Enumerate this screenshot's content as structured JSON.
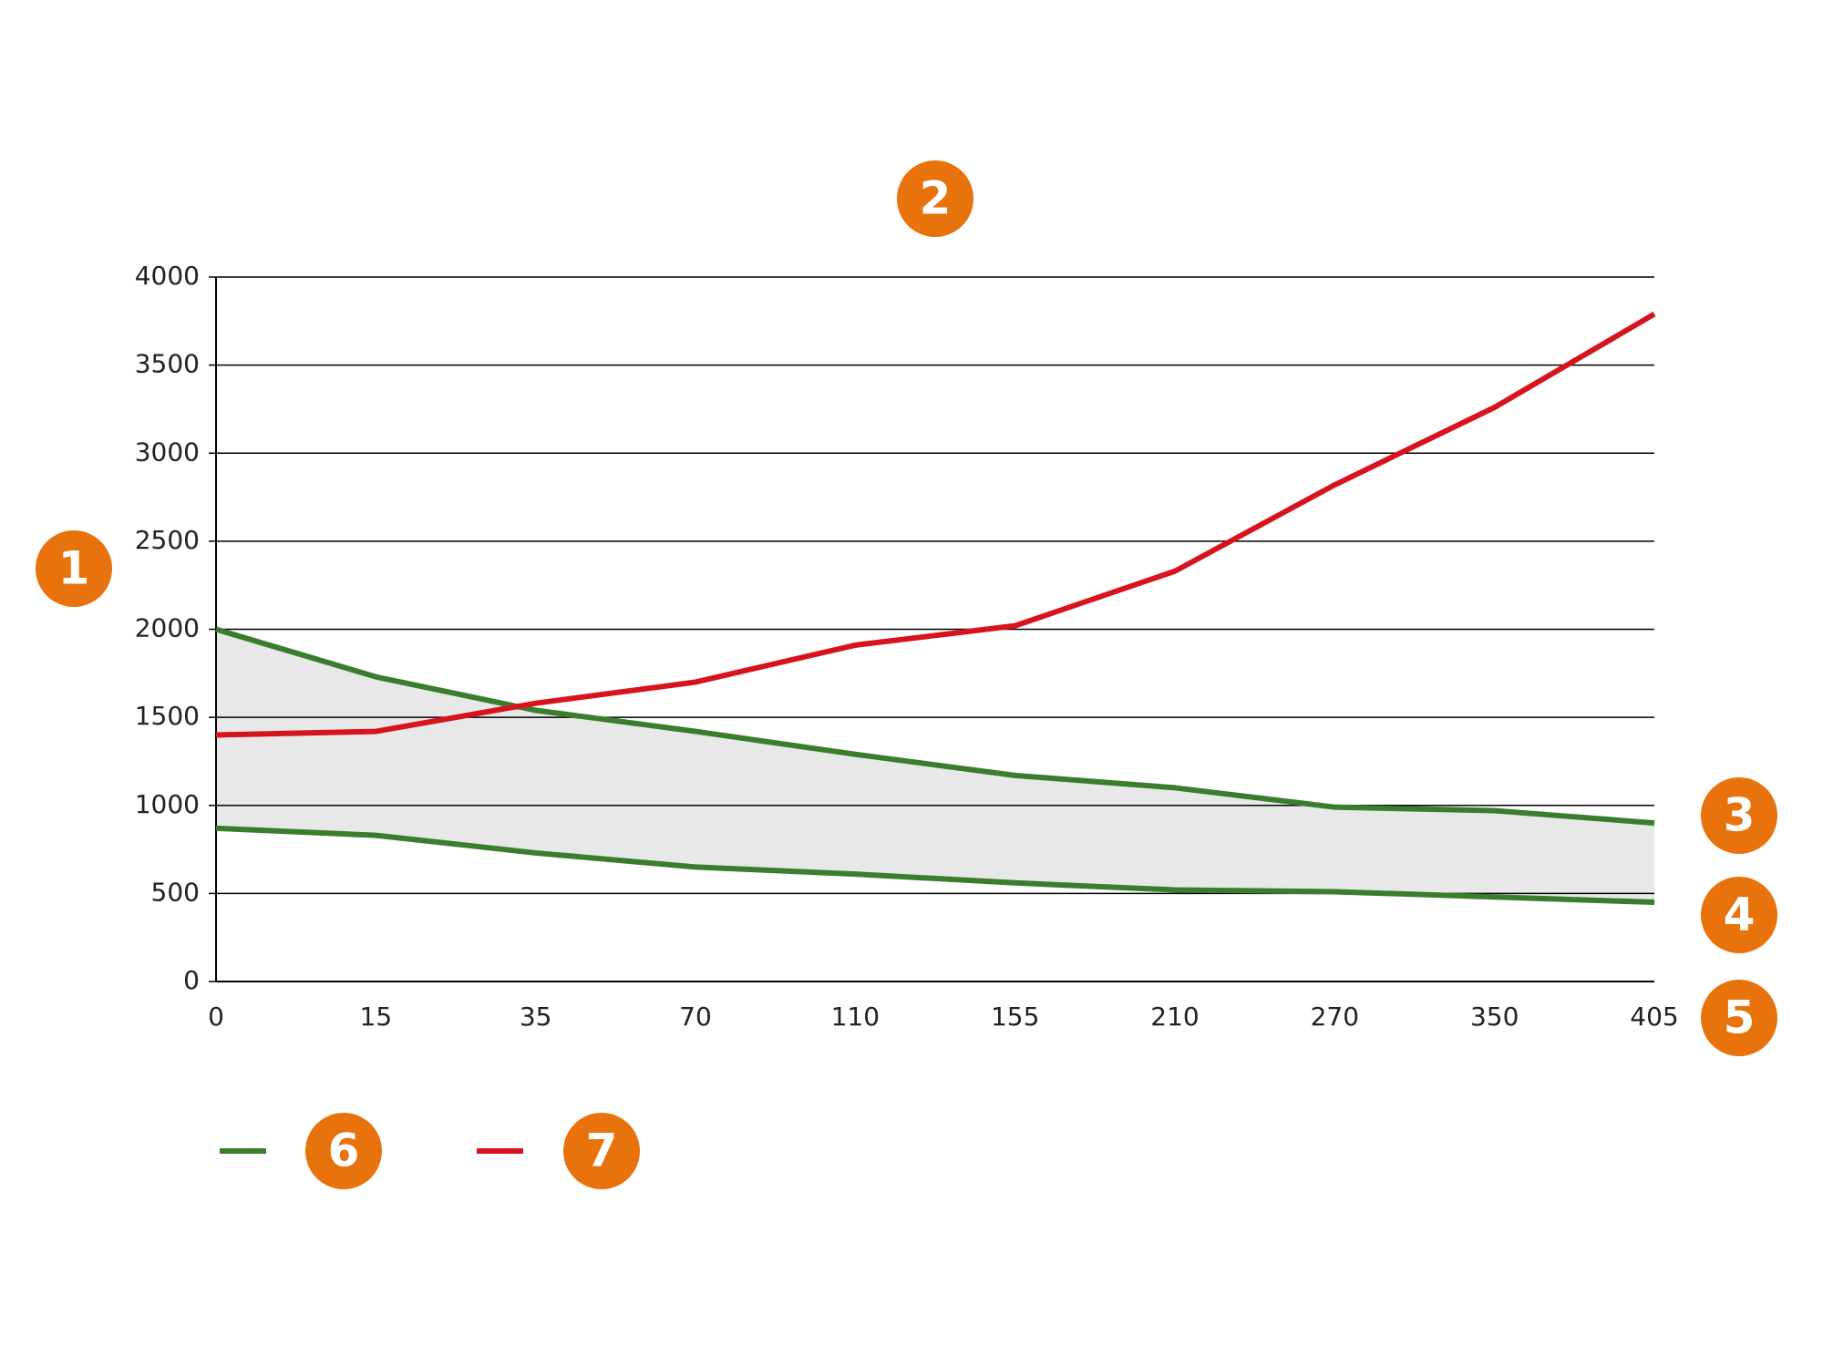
{
  "chart_data": {
    "type": "line",
    "categories": [
      "0",
      "15",
      "35",
      "70",
      "110",
      "155",
      "210",
      "270",
      "350",
      "405"
    ],
    "series": [
      {
        "color": "#3a7d2c",
        "values": [
          2000,
          1730,
          1540,
          1420,
          1290,
          1170,
          1100,
          990,
          970,
          900
        ]
      },
      {
        "color": "#3a7d2c",
        "values": [
          870,
          830,
          730,
          650,
          610,
          560,
          520,
          510,
          480,
          450
        ]
      },
      {
        "color": "#d7141e",
        "values": [
          1400,
          1420,
          1580,
          1700,
          1910,
          2020,
          2330,
          2820,
          3260,
          3790
        ]
      }
    ],
    "band_between": [
      0,
      1
    ],
    "band_color": "#e8e8e8",
    "ylim": [
      0,
      4000
    ],
    "yticks": [
      0,
      500,
      1000,
      1500,
      2000,
      2500,
      3000,
      3500,
      4000
    ],
    "grid": true,
    "annotations": [
      "1",
      "2",
      "3",
      "4",
      "5",
      "6",
      "7"
    ],
    "annotation_color": "#e8730c"
  }
}
